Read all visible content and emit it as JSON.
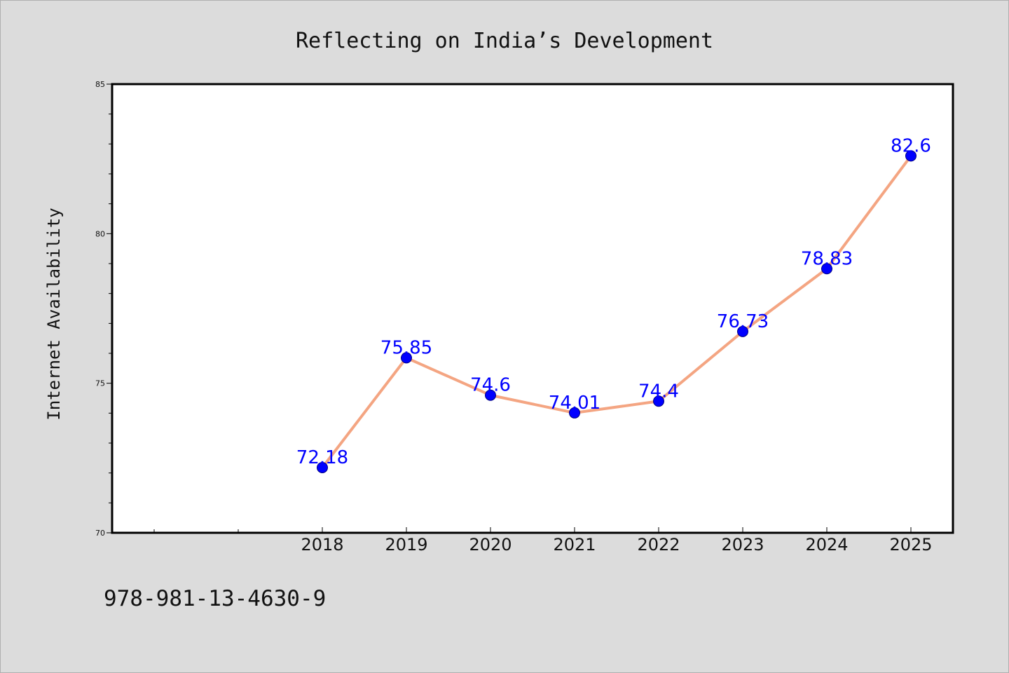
{
  "chart_data": {
    "type": "line",
    "title": "Reflecting on India’s Development",
    "xlabel": "",
    "ylabel": "Internet Availability",
    "categories": [
      "2018",
      "2019",
      "2020",
      "2021",
      "2022",
      "2023",
      "2024",
      "2025"
    ],
    "series": [
      {
        "values": [
          72.18,
          75.85,
          74.6,
          74.01,
          74.4,
          76.73,
          78.83,
          82.6
        ],
        "labels": [
          "72.18",
          "75.85",
          "74.6",
          "74.01",
          "74.4",
          "76.73",
          "78.83",
          "82.6"
        ]
      }
    ],
    "ylim": [
      70,
      85
    ],
    "yticks": [
      "70",
      "75",
      "80",
      "85"
    ],
    "grid": false,
    "legend": "none"
  },
  "footer": {
    "isbn": "978-981-13-4630-9"
  },
  "colors": {
    "background": "#dcdcdc",
    "plot_background": "#ffffff",
    "line": "#f4a582",
    "marker": "#0000ff",
    "data_label": "#0000ff"
  }
}
